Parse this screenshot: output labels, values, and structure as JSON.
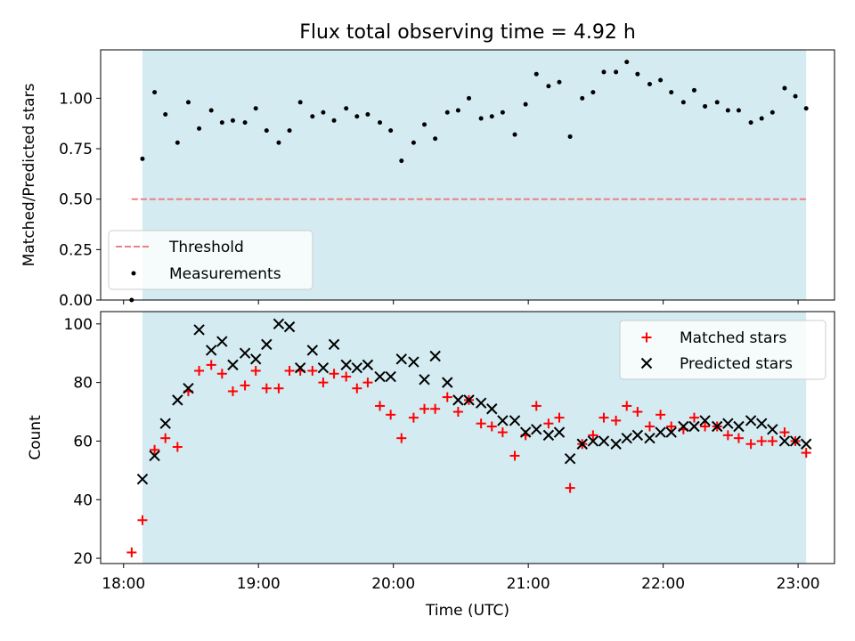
{
  "chart_data": {
    "type": "scatter",
    "title": "Flux total observing time = 4.92 h",
    "xlabel": "Time (UTC)",
    "x_ticks": [
      "18:00",
      "19:00",
      "20:00",
      "21:00",
      "22:00",
      "23:00"
    ],
    "x_tick_hours": [
      18,
      19,
      20,
      21,
      22,
      23
    ],
    "xlim_hours": [
      17.83,
      23.27
    ],
    "shaded_span_hours": [
      18.14,
      23.06
    ],
    "shade_color": "#d3ebf1",
    "panels": [
      {
        "ylabel": "Matched/Predicted stars",
        "ylim": [
          0,
          1.24
        ],
        "y_ticks": [
          "0.00",
          "0.25",
          "0.50",
          "0.75",
          "1.00"
        ],
        "y_tick_values": [
          0,
          0.25,
          0.5,
          0.75,
          1.0
        ],
        "legend_position": "lower-left",
        "threshold": {
          "name": "Threshold",
          "value": 0.5,
          "x_range_hours": [
            18.06,
            23.06
          ],
          "color": "#f08080",
          "style": "dashed"
        },
        "series": [
          {
            "name": "Measurements",
            "marker": "dot",
            "color": "#000000",
            "points": [
              [
                18.06,
                0.0
              ],
              [
                18.14,
                0.7
              ],
              [
                18.23,
                1.03
              ],
              [
                18.31,
                0.92
              ],
              [
                18.4,
                0.78
              ],
              [
                18.48,
                0.98
              ],
              [
                18.56,
                0.85
              ],
              [
                18.65,
                0.94
              ],
              [
                18.73,
                0.88
              ],
              [
                18.81,
                0.89
              ],
              [
                18.9,
                0.88
              ],
              [
                18.98,
                0.95
              ],
              [
                19.06,
                0.84
              ],
              [
                19.15,
                0.78
              ],
              [
                19.23,
                0.84
              ],
              [
                19.31,
                0.98
              ],
              [
                19.4,
                0.91
              ],
              [
                19.48,
                0.93
              ],
              [
                19.56,
                0.89
              ],
              [
                19.65,
                0.95
              ],
              [
                19.73,
                0.91
              ],
              [
                19.81,
                0.92
              ],
              [
                19.9,
                0.88
              ],
              [
                19.98,
                0.84
              ],
              [
                20.06,
                0.69
              ],
              [
                20.15,
                0.78
              ],
              [
                20.23,
                0.87
              ],
              [
                20.31,
                0.8
              ],
              [
                20.4,
                0.93
              ],
              [
                20.48,
                0.94
              ],
              [
                20.56,
                1.0
              ],
              [
                20.65,
                0.9
              ],
              [
                20.73,
                0.91
              ],
              [
                20.81,
                0.93
              ],
              [
                20.9,
                0.82
              ],
              [
                20.98,
                0.97
              ],
              [
                21.06,
                1.12
              ],
              [
                21.15,
                1.06
              ],
              [
                21.23,
                1.08
              ],
              [
                21.31,
                0.81
              ],
              [
                21.4,
                1.0
              ],
              [
                21.48,
                1.03
              ],
              [
                21.56,
                1.13
              ],
              [
                21.65,
                1.13
              ],
              [
                21.73,
                1.18
              ],
              [
                21.81,
                1.12
              ],
              [
                21.9,
                1.07
              ],
              [
                21.98,
                1.09
              ],
              [
                22.06,
                1.03
              ],
              [
                22.15,
                0.98
              ],
              [
                22.23,
                1.04
              ],
              [
                22.31,
                0.96
              ],
              [
                22.4,
                0.98
              ],
              [
                22.48,
                0.94
              ],
              [
                22.56,
                0.94
              ],
              [
                22.65,
                0.88
              ],
              [
                22.73,
                0.9
              ],
              [
                22.81,
                0.93
              ],
              [
                22.9,
                1.05
              ],
              [
                22.98,
                1.01
              ],
              [
                23.06,
                0.95
              ]
            ]
          }
        ]
      },
      {
        "ylabel": "Count",
        "ylim": [
          18.2,
          104.2
        ],
        "y_ticks": [
          "20",
          "40",
          "60",
          "80",
          "100"
        ],
        "y_tick_values": [
          20,
          40,
          60,
          80,
          100
        ],
        "legend_position": "top-right",
        "series": [
          {
            "name": "Matched stars",
            "marker": "plus",
            "color": "#ff0000",
            "points": [
              [
                18.06,
                22
              ],
              [
                18.14,
                33
              ],
              [
                18.23,
                57
              ],
              [
                18.31,
                61
              ],
              [
                18.4,
                58
              ],
              [
                18.48,
                77
              ],
              [
                18.56,
                84
              ],
              [
                18.65,
                86
              ],
              [
                18.73,
                83
              ],
              [
                18.81,
                77
              ],
              [
                18.9,
                79
              ],
              [
                18.98,
                84
              ],
              [
                19.06,
                78
              ],
              [
                19.15,
                78
              ],
              [
                19.23,
                84
              ],
              [
                19.31,
                84
              ],
              [
                19.4,
                84
              ],
              [
                19.48,
                80
              ],
              [
                19.56,
                83
              ],
              [
                19.65,
                82
              ],
              [
                19.73,
                78
              ],
              [
                19.81,
                80
              ],
              [
                19.9,
                72
              ],
              [
                19.98,
                69
              ],
              [
                20.06,
                61
              ],
              [
                20.15,
                68
              ],
              [
                20.23,
                71
              ],
              [
                20.31,
                71
              ],
              [
                20.4,
                75
              ],
              [
                20.48,
                70
              ],
              [
                20.56,
                74
              ],
              [
                20.65,
                66
              ],
              [
                20.73,
                65
              ],
              [
                20.81,
                63
              ],
              [
                20.9,
                55
              ],
              [
                20.98,
                62
              ],
              [
                21.06,
                72
              ],
              [
                21.15,
                66
              ],
              [
                21.23,
                68
              ],
              [
                21.31,
                44
              ],
              [
                21.4,
                59
              ],
              [
                21.48,
                62
              ],
              [
                21.56,
                68
              ],
              [
                21.65,
                67
              ],
              [
                21.73,
                72
              ],
              [
                21.81,
                70
              ],
              [
                21.9,
                65
              ],
              [
                21.98,
                69
              ],
              [
                22.06,
                65
              ],
              [
                22.15,
                64
              ],
              [
                22.23,
                68
              ],
              [
                22.31,
                65
              ],
              [
                22.4,
                65
              ],
              [
                22.48,
                62
              ],
              [
                22.56,
                61
              ],
              [
                22.65,
                59
              ],
              [
                22.73,
                60
              ],
              [
                22.81,
                60
              ],
              [
                22.9,
                63
              ],
              [
                22.98,
                60
              ],
              [
                23.06,
                56
              ]
            ]
          },
          {
            "name": "Predicted stars",
            "marker": "x",
            "color": "#000000",
            "points": [
              [
                18.14,
                47
              ],
              [
                18.23,
                55
              ],
              [
                18.31,
                66
              ],
              [
                18.4,
                74
              ],
              [
                18.48,
                78
              ],
              [
                18.56,
                98
              ],
              [
                18.65,
                91
              ],
              [
                18.73,
                94
              ],
              [
                18.81,
                86
              ],
              [
                18.9,
                90
              ],
              [
                18.98,
                88
              ],
              [
                19.06,
                93
              ],
              [
                19.15,
                100
              ],
              [
                19.23,
                99
              ],
              [
                19.31,
                85
              ],
              [
                19.4,
                91
              ],
              [
                19.48,
                85
              ],
              [
                19.56,
                93
              ],
              [
                19.65,
                86
              ],
              [
                19.73,
                85
              ],
              [
                19.81,
                86
              ],
              [
                19.9,
                82
              ],
              [
                19.98,
                82
              ],
              [
                20.06,
                88
              ],
              [
                20.15,
                87
              ],
              [
                20.23,
                81
              ],
              [
                20.31,
                89
              ],
              [
                20.4,
                80
              ],
              [
                20.48,
                74
              ],
              [
                20.56,
                74
              ],
              [
                20.65,
                73
              ],
              [
                20.73,
                71
              ],
              [
                20.81,
                67
              ],
              [
                20.9,
                67
              ],
              [
                20.98,
                63
              ],
              [
                21.06,
                64
              ],
              [
                21.15,
                62
              ],
              [
                21.23,
                63
              ],
              [
                21.31,
                54
              ],
              [
                21.4,
                59
              ],
              [
                21.48,
                60
              ],
              [
                21.56,
                60
              ],
              [
                21.65,
                59
              ],
              [
                21.73,
                61
              ],
              [
                21.81,
                62
              ],
              [
                21.9,
                61
              ],
              [
                21.98,
                63
              ],
              [
                22.06,
                63
              ],
              [
                22.15,
                65
              ],
              [
                22.23,
                65
              ],
              [
                22.31,
                67
              ],
              [
                22.4,
                65
              ],
              [
                22.48,
                66
              ],
              [
                22.56,
                65
              ],
              [
                22.65,
                67
              ],
              [
                22.73,
                66
              ],
              [
                22.81,
                64
              ],
              [
                22.9,
                60
              ],
              [
                22.98,
                60
              ],
              [
                23.06,
                59
              ]
            ]
          }
        ]
      }
    ]
  }
}
